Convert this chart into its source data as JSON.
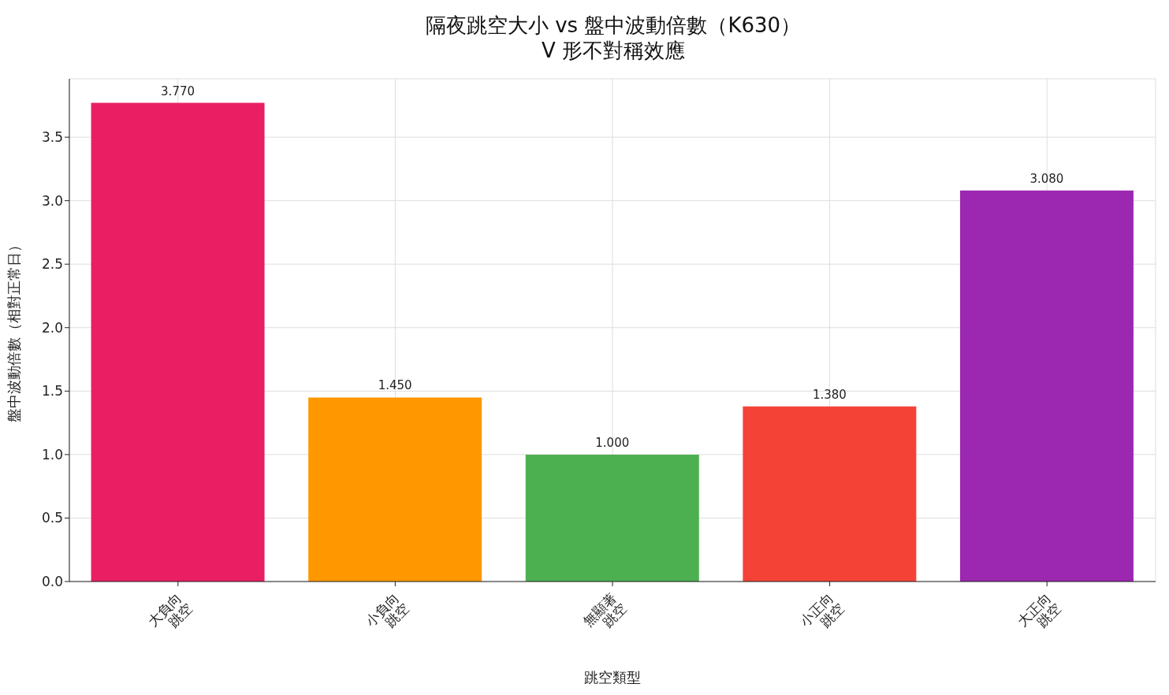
{
  "chart_data": {
    "type": "bar",
    "title": "隔夜跳空大小 vs 盤中波動倍數（K630）\nV 形不對稱效應",
    "xlabel": "跳空類型",
    "ylabel": "盤中波動倍數（相對正常日）",
    "categories": [
      "大負向\n跳空",
      "小負向\n跳空",
      "無顯著\n跳空",
      "小正向\n跳空",
      "大正向\n跳空"
    ],
    "values": [
      3.77,
      1.45,
      1.0,
      1.38,
      3.08
    ],
    "colors": [
      "#e91e63",
      "#ff9800",
      "#4caf50",
      "#f44336",
      "#9c27b0"
    ],
    "value_labels": [
      "3.770",
      "1.450",
      "1.000",
      "1.380",
      "3.080"
    ],
    "ylim": [
      0,
      3.96
    ],
    "yticks": [
      {
        "value": 0,
        "label": "0.0"
      },
      {
        "value": 0.5,
        "label": "0.5"
      },
      {
        "value": 1,
        "label": "1.0"
      },
      {
        "value": 1.5,
        "label": "1.5"
      },
      {
        "value": 2,
        "label": "2.0"
      },
      {
        "value": 2.5,
        "label": "2.5"
      },
      {
        "value": 3,
        "label": "3.0"
      },
      {
        "value": 3.5,
        "label": "3.5"
      }
    ],
    "grid": true
  }
}
